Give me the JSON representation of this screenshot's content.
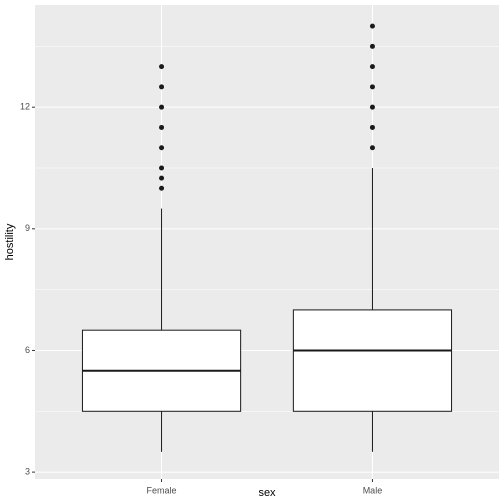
{
  "chart_data": {
    "type": "box",
    "x_label": "sex",
    "y_label": "hostility",
    "categories": [
      "Female",
      "Male"
    ],
    "boxes": [
      {
        "min": 3.5,
        "q1": 4.5,
        "median": 5.5,
        "q3": 6.5,
        "max": 9.5,
        "outliers": [
          10,
          10.25,
          10.5,
          11,
          11.5,
          12,
          12.5,
          13
        ]
      },
      {
        "min": 3.5,
        "q1": 4.5,
        "median": 6,
        "q3": 7,
        "max": 10.5,
        "outliers": [
          11,
          11.5,
          12,
          12.5,
          13,
          13.5,
          14
        ]
      }
    ],
    "ylim": [
      2.83,
      14.52
    ],
    "yticks": [
      3,
      6,
      9,
      12
    ],
    "minor_yticks": [
      4.5,
      7.5,
      10.5,
      13.5
    ],
    "grid": true,
    "box_color": "#ffffff",
    "line_color": "#1a1a1a",
    "panel_color": "#ebebeb"
  }
}
